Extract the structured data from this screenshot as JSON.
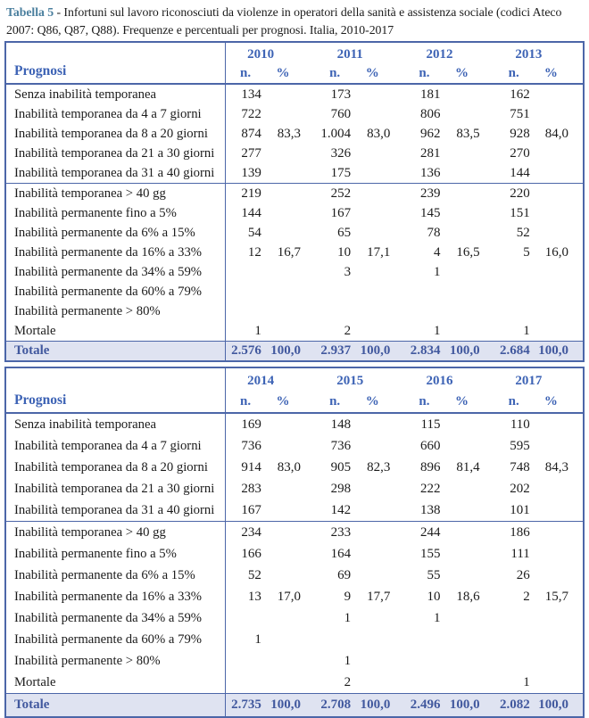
{
  "caption": {
    "label": "Tabella 5",
    "text": " - Infortuni sul lavoro riconosciuti da violenze in operatori della sanità e assistenza sociale (codici Ateco 2007: Q86, Q87, Q88). Frequenze e percentuali per prognosi. Italia, 2010-2017"
  },
  "colors": {
    "border_blue": "#4c66a8",
    "header_text_blue": "#3d63b5",
    "total_row_bg": "#dfe3f1",
    "total_text_blue": "#41589e",
    "caption_label_teal": "#4a7f9e"
  },
  "tables": [
    {
      "prognosi_label": "Prognosi",
      "years": [
        "2010",
        "2011",
        "2012",
        "2013"
      ],
      "subheaders": {
        "n": "n.",
        "pct": "%"
      },
      "groups": [
        {
          "rows": [
            {
              "label": "Senza inabilità temporanea",
              "cells": [
                [
                  "134",
                  ""
                ],
                [
                  "173",
                  ""
                ],
                [
                  "181",
                  ""
                ],
                [
                  "162",
                  ""
                ]
              ]
            },
            {
              "label": "Inabilità temporanea da 4 a 7 giorni",
              "cells": [
                [
                  "722",
                  ""
                ],
                [
                  "760",
                  ""
                ],
                [
                  "806",
                  ""
                ],
                [
                  "751",
                  ""
                ]
              ]
            },
            {
              "label": "Inabilità temporanea da 8 a 20 giorni",
              "cells": [
                [
                  "874",
                  "83,3"
                ],
                [
                  "1.004",
                  "83,0"
                ],
                [
                  "962",
                  "83,5"
                ],
                [
                  "928",
                  "84,0"
                ]
              ]
            },
            {
              "label": "Inabilità temporanea da 21 a 30 giorni",
              "cells": [
                [
                  "277",
                  ""
                ],
                [
                  "326",
                  ""
                ],
                [
                  "281",
                  ""
                ],
                [
                  "270",
                  ""
                ]
              ]
            },
            {
              "label": "Inabilità temporanea da 31 a 40 giorni",
              "cells": [
                [
                  "139",
                  ""
                ],
                [
                  "175",
                  ""
                ],
                [
                  "136",
                  ""
                ],
                [
                  "144",
                  ""
                ]
              ]
            }
          ]
        },
        {
          "rows": [
            {
              "label": "Inabilità temporanea > 40 gg",
              "cells": [
                [
                  "219",
                  ""
                ],
                [
                  "252",
                  ""
                ],
                [
                  "239",
                  ""
                ],
                [
                  "220",
                  ""
                ]
              ]
            },
            {
              "label": "Inabilità permanente fino a 5%",
              "cells": [
                [
                  "144",
                  ""
                ],
                [
                  "167",
                  ""
                ],
                [
                  "145",
                  ""
                ],
                [
                  "151",
                  ""
                ]
              ]
            },
            {
              "label": "Inabilità permanente da 6% a 15%",
              "cells": [
                [
                  "54",
                  ""
                ],
                [
                  "65",
                  ""
                ],
                [
                  "78",
                  ""
                ],
                [
                  "52",
                  ""
                ]
              ]
            },
            {
              "label": "Inabilità permanente da 16% a 33%",
              "cells": [
                [
                  "12",
                  "16,7"
                ],
                [
                  "10",
                  "17,1"
                ],
                [
                  "4",
                  "16,5"
                ],
                [
                  "5",
                  "16,0"
                ]
              ]
            },
            {
              "label": "Inabilità permanente da 34% a 59%",
              "cells": [
                [
                  "",
                  ""
                ],
                [
                  "3",
                  ""
                ],
                [
                  "1",
                  ""
                ],
                [
                  "",
                  ""
                ]
              ]
            },
            {
              "label": "Inabilità permanente da 60% a 79%",
              "cells": [
                [
                  "",
                  ""
                ],
                [
                  "",
                  ""
                ],
                [
                  "",
                  ""
                ],
                [
                  "",
                  ""
                ]
              ]
            },
            {
              "label": "Inabilità permanente > 80%",
              "cells": [
                [
                  "",
                  ""
                ],
                [
                  "",
                  ""
                ],
                [
                  "",
                  ""
                ],
                [
                  "",
                  ""
                ]
              ]
            },
            {
              "label": "Mortale",
              "cells": [
                [
                  "1",
                  ""
                ],
                [
                  "2",
                  ""
                ],
                [
                  "1",
                  ""
                ],
                [
                  "1",
                  ""
                ]
              ]
            }
          ]
        }
      ],
      "total": {
        "label": "Totale",
        "cells": [
          [
            "2.576",
            "100,0"
          ],
          [
            "2.937",
            "100,0"
          ],
          [
            "2.834",
            "100,0"
          ],
          [
            "2.684",
            "100,0"
          ]
        ]
      }
    },
    {
      "prognosi_label": "Prognosi",
      "years": [
        "2014",
        "2015",
        "2016",
        "2017"
      ],
      "subheaders": {
        "n": "n.",
        "pct": "%"
      },
      "groups": [
        {
          "rows": [
            {
              "label": "Senza inabilità temporanea",
              "cells": [
                [
                  "169",
                  ""
                ],
                [
                  "148",
                  ""
                ],
                [
                  "115",
                  ""
                ],
                [
                  "110",
                  ""
                ]
              ]
            },
            {
              "label": "Inabilità temporanea da 4 a 7 giorni",
              "cells": [
                [
                  "736",
                  ""
                ],
                [
                  "736",
                  ""
                ],
                [
                  "660",
                  ""
                ],
                [
                  "595",
                  ""
                ]
              ]
            },
            {
              "label": "Inabilità temporanea da 8 a 20 giorni",
              "cells": [
                [
                  "914",
                  "83,0"
                ],
                [
                  "905",
                  "82,3"
                ],
                [
                  "896",
                  "81,4"
                ],
                [
                  "748",
                  "84,3"
                ]
              ]
            },
            {
              "label": "Inabilità temporanea da 21 a 30 giorni",
              "cells": [
                [
                  "283",
                  ""
                ],
                [
                  "298",
                  ""
                ],
                [
                  "222",
                  ""
                ],
                [
                  "202",
                  ""
                ]
              ]
            },
            {
              "label": "Inabilità temporanea da 31 a 40 giorni",
              "cells": [
                [
                  "167",
                  ""
                ],
                [
                  "142",
                  ""
                ],
                [
                  "138",
                  ""
                ],
                [
                  "101",
                  ""
                ]
              ]
            }
          ]
        },
        {
          "rows": [
            {
              "label": "Inabilità temporanea > 40 gg",
              "cells": [
                [
                  "234",
                  ""
                ],
                [
                  "233",
                  ""
                ],
                [
                  "244",
                  ""
                ],
                [
                  "186",
                  ""
                ]
              ]
            },
            {
              "label": "Inabilità permanente fino a 5%",
              "cells": [
                [
                  "166",
                  ""
                ],
                [
                  "164",
                  ""
                ],
                [
                  "155",
                  ""
                ],
                [
                  "111",
                  ""
                ]
              ]
            },
            {
              "label": "Inabilità permanente da 6% a 15%",
              "cells": [
                [
                  "52",
                  ""
                ],
                [
                  "69",
                  ""
                ],
                [
                  "55",
                  ""
                ],
                [
                  "26",
                  ""
                ]
              ]
            },
            {
              "label": "Inabilità permanente da 16% a 33%",
              "cells": [
                [
                  "13",
                  "17,0"
                ],
                [
                  "9",
                  "17,7"
                ],
                [
                  "10",
                  "18,6"
                ],
                [
                  "2",
                  "15,7"
                ]
              ]
            },
            {
              "label": "Inabilità permanente da 34% a 59%",
              "cells": [
                [
                  "",
                  ""
                ],
                [
                  "1",
                  ""
                ],
                [
                  "1",
                  ""
                ],
                [
                  "",
                  ""
                ]
              ]
            },
            {
              "label": "Inabilità permanente da 60% a 79%",
              "cells": [
                [
                  "1",
                  ""
                ],
                [
                  "",
                  ""
                ],
                [
                  "",
                  ""
                ],
                [
                  "",
                  ""
                ]
              ]
            },
            {
              "label": "Inabilità permanente > 80%",
              "cells": [
                [
                  "",
                  ""
                ],
                [
                  "1",
                  ""
                ],
                [
                  "",
                  ""
                ],
                [
                  "",
                  ""
                ]
              ]
            },
            {
              "label": "Mortale",
              "cells": [
                [
                  "",
                  ""
                ],
                [
                  "2",
                  ""
                ],
                [
                  "",
                  ""
                ],
                [
                  "1",
                  ""
                ]
              ]
            }
          ]
        }
      ],
      "total": {
        "label": "Totale",
        "cells": [
          [
            "2.735",
            "100,0"
          ],
          [
            "2.708",
            "100,0"
          ],
          [
            "2.496",
            "100,0"
          ],
          [
            "2.082",
            "100,0"
          ]
        ]
      }
    }
  ]
}
